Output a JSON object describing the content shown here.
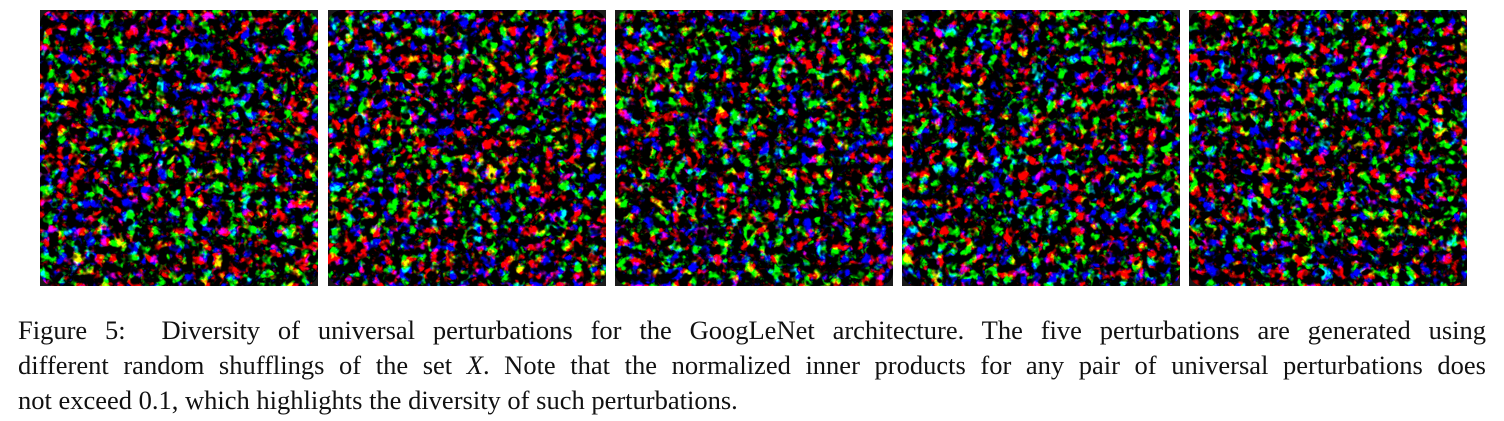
{
  "figure": {
    "images": 5
  },
  "caption": {
    "label": "Figure 5:",
    "lines": [
      [
        "Diversity of universal perturbations for the GoogLeNet architecture. The five perturbations are generated using"
      ],
      [
        "different random shufflings of the set ",
        "X",
        ". Note that the normalized inner products for any pair of universal perturbations does"
      ],
      [
        "not exceed ",
        "0.1",
        ", which highlights the diversity of such perturbations."
      ]
    ]
  }
}
